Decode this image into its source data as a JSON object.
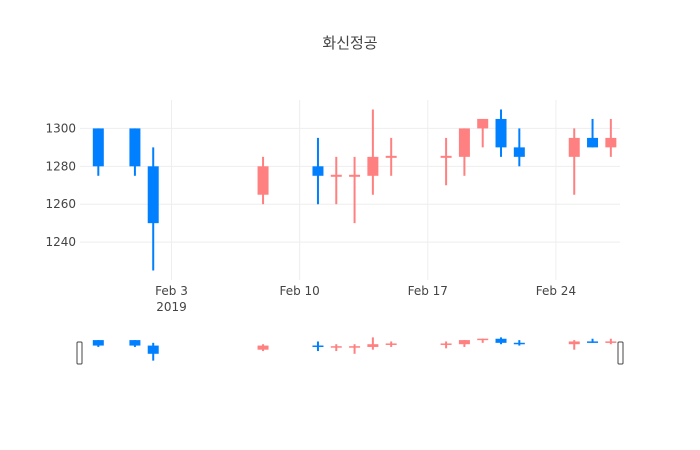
{
  "chart_data": {
    "type": "candlestick",
    "title": "화신정공",
    "xlabel": "",
    "ylabel": "",
    "ylim": [
      1220,
      1315
    ],
    "yticks": [
      1240,
      1260,
      1280,
      1300
    ],
    "x_range": [
      "2019-01-29",
      "2019-02-27"
    ],
    "xticks": [
      {
        "date": "2019-02-03",
        "label": "Feb 3",
        "sublabel": "2019"
      },
      {
        "date": "2019-02-10",
        "label": "Feb 10",
        "sublabel": ""
      },
      {
        "date": "2019-02-17",
        "label": "Feb 17",
        "sublabel": ""
      },
      {
        "date": "2019-02-24",
        "label": "Feb 24",
        "sublabel": ""
      }
    ],
    "increasing_color": "#ff8080",
    "decreasing_color": "#0080ff",
    "grid": true,
    "legend": "none",
    "range_slider": true,
    "candles": [
      {
        "date": "2019-01-30",
        "open": 1300,
        "high": 1300,
        "low": 1275,
        "close": 1280
      },
      {
        "date": "2019-02-01",
        "open": 1300,
        "high": 1300,
        "low": 1275,
        "close": 1280
      },
      {
        "date": "2019-02-02",
        "open": 1280,
        "high": 1290,
        "low": 1225,
        "close": 1250
      },
      {
        "date": "2019-02-08",
        "open": 1265,
        "high": 1285,
        "low": 1260,
        "close": 1280
      },
      {
        "date": "2019-02-11",
        "open": 1280,
        "high": 1295,
        "low": 1260,
        "close": 1275
      },
      {
        "date": "2019-02-12",
        "open": 1275,
        "high": 1285,
        "low": 1260,
        "close": 1275
      },
      {
        "date": "2019-02-13",
        "open": 1275,
        "high": 1285,
        "low": 1250,
        "close": 1275
      },
      {
        "date": "2019-02-14",
        "open": 1275,
        "high": 1310,
        "low": 1265,
        "close": 1285
      },
      {
        "date": "2019-02-15",
        "open": 1285,
        "high": 1295,
        "low": 1275,
        "close": 1285
      },
      {
        "date": "2019-02-18",
        "open": 1285,
        "high": 1295,
        "low": 1270,
        "close": 1285
      },
      {
        "date": "2019-02-19",
        "open": 1285,
        "high": 1300,
        "low": 1275,
        "close": 1300
      },
      {
        "date": "2019-02-20",
        "open": 1300,
        "high": 1305,
        "low": 1290,
        "close": 1305
      },
      {
        "date": "2019-02-21",
        "open": 1305,
        "high": 1310,
        "low": 1285,
        "close": 1290
      },
      {
        "date": "2019-02-22",
        "open": 1290,
        "high": 1300,
        "low": 1280,
        "close": 1285
      },
      {
        "date": "2019-02-25",
        "open": 1285,
        "high": 1300,
        "low": 1265,
        "close": 1295
      },
      {
        "date": "2019-02-26",
        "open": 1295,
        "high": 1305,
        "low": 1290,
        "close": 1290
      },
      {
        "date": "2019-02-27",
        "open": 1290,
        "high": 1305,
        "low": 1285,
        "close": 1295
      }
    ]
  }
}
